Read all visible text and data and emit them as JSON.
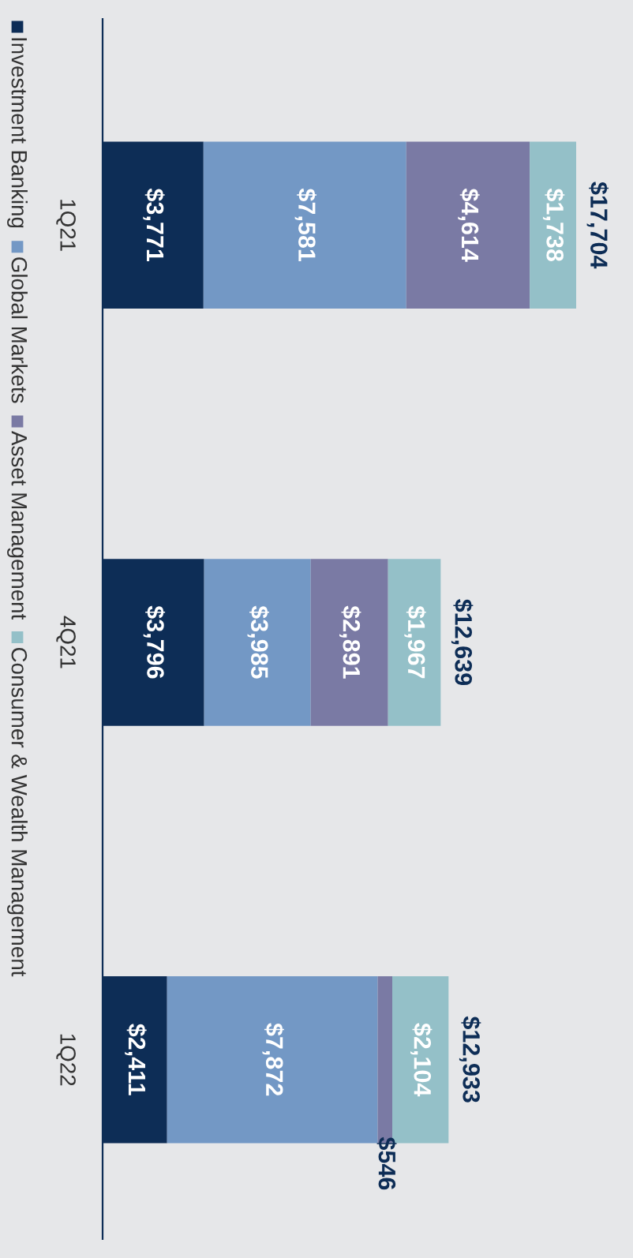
{
  "chart_data": {
    "type": "bar",
    "orientation": "horizontal",
    "stacked": true,
    "legend": "left",
    "grid": false,
    "categories": [
      "1Q21",
      "4Q21",
      "1Q22"
    ],
    "series": [
      {
        "name": "Investment Banking",
        "color": "#0d2d56",
        "values": [
          3771,
          3796,
          2411
        ],
        "value_labels": [
          "$3,771",
          "$3,796",
          "$2,411"
        ]
      },
      {
        "name": "Global Markets",
        "color": "#7398c5",
        "values": [
          7581,
          3985,
          7872
        ],
        "value_labels": [
          "$7,581",
          "$3,985",
          "$7,872"
        ]
      },
      {
        "name": "Asset Management",
        "color": "#7a7aa4",
        "values": [
          4614,
          2891,
          546
        ],
        "value_labels": [
          "$4,614",
          "$2,891",
          "$546"
        ]
      },
      {
        "name": "Consumer & Wealth Management",
        "color": "#94c0c8",
        "values": [
          1738,
          1967,
          2104
        ],
        "value_labels": [
          "$1,738",
          "$1,967",
          "$2,104"
        ]
      }
    ],
    "totals": [
      "$17,704",
      "$12,639",
      "$12,933"
    ]
  }
}
